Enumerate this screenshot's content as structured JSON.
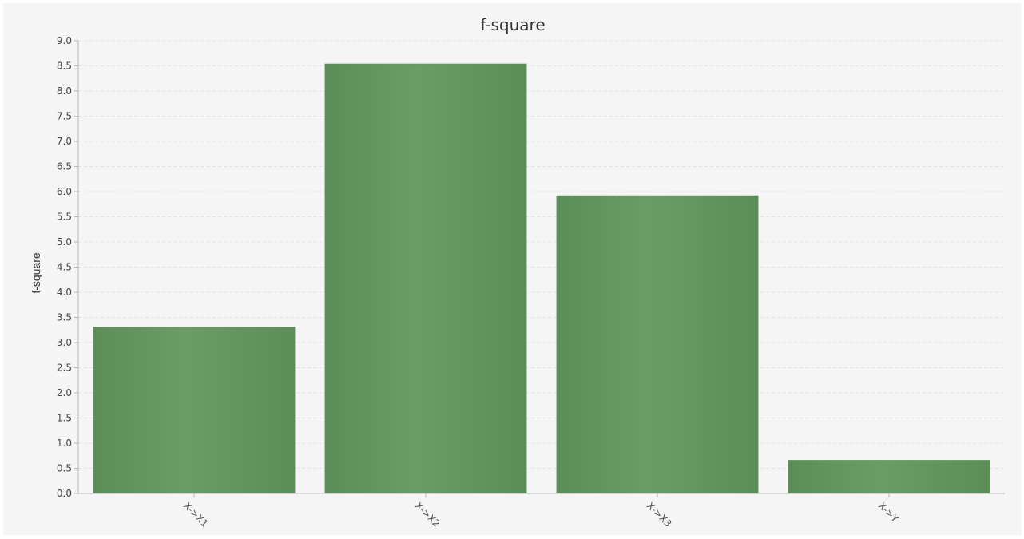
{
  "chart_data": {
    "type": "bar",
    "title": "f-square",
    "xlabel": "",
    "ylabel": "f-square",
    "categories": [
      "X->X1",
      "X->X2",
      "X->X3",
      "X->Y"
    ],
    "values": [
      3.31,
      8.54,
      5.92,
      0.66
    ],
    "ylim": [
      0,
      9
    ],
    "ytick_step": 0.5,
    "y_ticks": [
      "0.0",
      "0.5",
      "1.0",
      "1.5",
      "2.0",
      "2.5",
      "3.0",
      "3.5",
      "4.0",
      "4.5",
      "5.0",
      "5.5",
      "6.0",
      "6.5",
      "7.0",
      "7.5",
      "8.0",
      "8.5",
      "9.0"
    ],
    "grid": true,
    "legend": "none",
    "bar_color": "#64965f",
    "bar_color_edge": "#5c8d58"
  }
}
